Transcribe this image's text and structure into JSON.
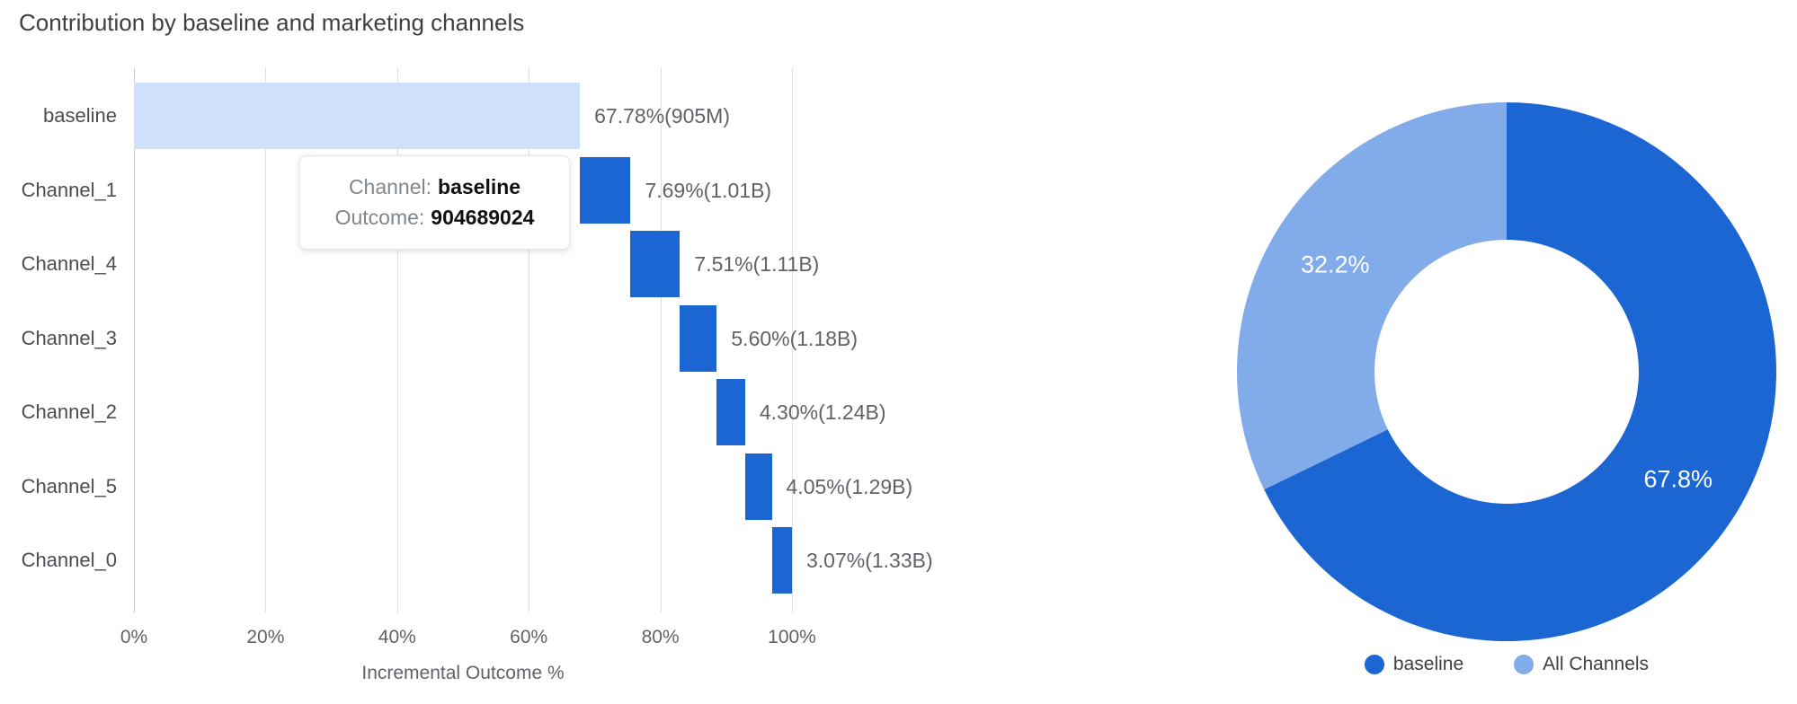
{
  "title": "Contribution by baseline and marketing channels",
  "tooltip": {
    "channel_label": "Channel:",
    "channel_value": "baseline",
    "outcome_label": "Outcome:",
    "outcome_value": "904689024"
  },
  "colors": {
    "dark_blue": "#1b66d2",
    "light_blue": "#82abea",
    "baseline_bar": "#cfe0fa",
    "grid": "#dde0e4"
  },
  "chart_data": [
    {
      "type": "bar",
      "variant": "horizontal-waterfall",
      "title": "Contribution by baseline and marketing channels",
      "categories": [
        "baseline",
        "Channel_1",
        "Channel_4",
        "Channel_3",
        "Channel_2",
        "Channel_5",
        "Channel_0"
      ],
      "series": [
        {
          "name": "Incremental Outcome %",
          "starts": [
            0,
            67.78,
            75.47,
            82.98,
            88.58,
            92.88,
            96.93
          ],
          "values": [
            67.78,
            7.69,
            7.51,
            5.6,
            4.3,
            4.05,
            3.07
          ],
          "labels": [
            "67.78%(905M)",
            "7.69%(1.01B)",
            "7.51%(1.11B)",
            "5.60%(1.18B)",
            "4.30%(1.24B)",
            "4.05%(1.29B)",
            "3.07%(1.33B)"
          ]
        }
      ],
      "bar_colors": [
        "#cfe0fa",
        "#1b66d2",
        "#1b66d2",
        "#1b66d2",
        "#1b66d2",
        "#1b66d2",
        "#1b66d2"
      ],
      "xlabel": "Incremental Outcome %",
      "x_ticks": [
        "0%",
        "20%",
        "40%",
        "60%",
        "80%",
        "100%"
      ],
      "xlim": [
        0,
        100
      ],
      "grid": true
    },
    {
      "type": "pie",
      "variant": "donut",
      "labels": [
        "baseline",
        "All Channels"
      ],
      "values": [
        67.8,
        32.2
      ],
      "slice_labels": [
        "67.8%",
        "32.2%"
      ],
      "colors": [
        "#1b66d2",
        "#82abea"
      ],
      "start_angle_deg": 0,
      "direction": "clockwise",
      "legend_position": "bottom"
    }
  ],
  "legend": {
    "items": [
      {
        "label": "baseline",
        "color": "#1b66d2"
      },
      {
        "label": "All Channels",
        "color": "#82abea"
      }
    ]
  }
}
